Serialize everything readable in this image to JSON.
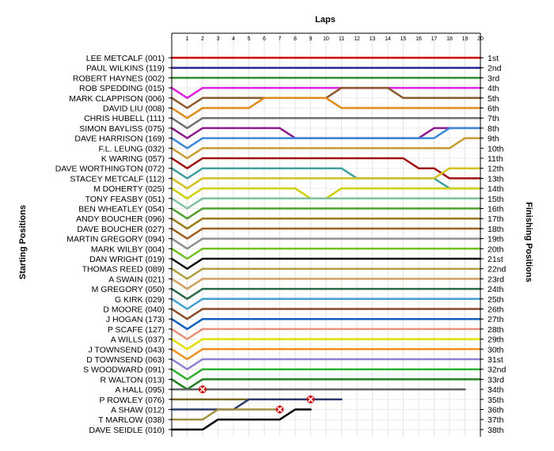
{
  "chart_data": {
    "type": "line",
    "title": "Laps",
    "ylabel_left": "Starting Positions",
    "ylabel_right": "Finishing Positions",
    "x_ticks": [
      "1",
      "2",
      "3",
      "4",
      "5",
      "6",
      "7",
      "8",
      "9",
      "10",
      "11",
      "12",
      "13",
      "14",
      "15",
      "16",
      "17",
      "18",
      "19",
      "20"
    ],
    "xlim": [
      0,
      20
    ],
    "ylim": [
      1,
      38
    ],
    "starting_positions": [
      "LEE METCALF (001)",
      "PAUL WILKINS (119)",
      "ROBERT HAYNES (002)",
      "ROB SPEDDING (015)",
      "MARK CLAPPISON (006)",
      "DAVID LIU (008)",
      "CHRIS HUBELL (111)",
      "SIMON BAYLISS (075)",
      "DAVE HARRISON (169)",
      "F.L. LEUNG (032)",
      "K WARING (057)",
      "DAVE WORTHINGTON (072)",
      "STACEY METCALF (112)",
      "M DOHERTY (025)",
      "TONY FEASBY (051)",
      "BEN WHEATLEY (054)",
      "ANDY BOUCHER (096)",
      "DAVE BOUCHER (027)",
      "MARTIN GREGORY (094)",
      "MARK WILBY (004)",
      "DAN WRIGHT (019)",
      "THOMAS REED (089)",
      "A SWAIN (021)",
      "M GREGORY (050)",
      "G KIRK (029)",
      "D MOORE (040)",
      "J HOGAN (173)",
      "P SCAFE (127)",
      "A WILLS (037)",
      "J TOWNSEND (043)",
      "D TOWNSEND (063)",
      "S WOODWARD (091)",
      "R WALTON (013)",
      "A HALL (095)",
      "P ROWLEY (076)",
      "A SHAW (012)",
      "T MARLOW (038)",
      "DAVE SEIDLE (010)"
    ],
    "finishing_positions": [
      "1st",
      "2nd",
      "3rd",
      "4th",
      "5th",
      "6th",
      "7th",
      "8th",
      "9th",
      "10th",
      "11th",
      "12th",
      "13th",
      "14th",
      "15th",
      "16th",
      "17th",
      "18th",
      "19th",
      "20th",
      "21st",
      "22nd",
      "23rd",
      "24th",
      "25th",
      "26th",
      "27th",
      "28th",
      "29th",
      "30th",
      "31st",
      "32nd",
      "33rd",
      "34th",
      "35th",
      "36th",
      "37th",
      "38th"
    ],
    "series": [
      {
        "color": "#cc0000",
        "positions": [
          1,
          1,
          1,
          1,
          1,
          1,
          1,
          1,
          1,
          1,
          1,
          1,
          1,
          1,
          1,
          1,
          1,
          1,
          1,
          1,
          1
        ]
      },
      {
        "color": "#2a2a9a",
        "positions": [
          2,
          2,
          2,
          2,
          2,
          2,
          2,
          2,
          2,
          2,
          2,
          2,
          2,
          2,
          2,
          2,
          2,
          2,
          2,
          2,
          2
        ]
      },
      {
        "color": "#2e8b2e",
        "positions": [
          3,
          3,
          3,
          3,
          3,
          3,
          3,
          3,
          3,
          3,
          3,
          3,
          3,
          3,
          3,
          3,
          3,
          3,
          3,
          3,
          3
        ]
      },
      {
        "color": "#e020e0",
        "positions": [
          4,
          5,
          4,
          4,
          4,
          4,
          4,
          4,
          4,
          4,
          4,
          4,
          4,
          4,
          4,
          4,
          4,
          4,
          4,
          4,
          4
        ]
      },
      {
        "color": "#8b5a2b",
        "positions": [
          5,
          6,
          5,
          5,
          5,
          5,
          5,
          5,
          5,
          5,
          5,
          4,
          4,
          4,
          4,
          5,
          5,
          5,
          5,
          5,
          5
        ]
      },
      {
        "color": "#e08a1a",
        "positions": [
          6,
          7,
          6,
          6,
          6,
          6,
          5,
          5,
          5,
          5,
          5,
          6,
          6,
          6,
          6,
          6,
          6,
          6,
          6,
          6,
          6
        ]
      },
      {
        "color": "#707070",
        "positions": [
          7,
          8,
          7,
          7,
          7,
          7,
          7,
          7,
          7,
          7,
          7,
          7,
          7,
          7,
          7,
          7,
          7,
          7,
          7,
          7,
          7
        ]
      },
      {
        "color": "#8b1a8b",
        "positions": [
          8,
          9,
          8,
          8,
          8,
          8,
          8,
          8,
          9,
          9,
          9,
          9,
          9,
          9,
          9,
          9,
          9,
          8,
          8,
          8,
          8
        ]
      },
      {
        "color": "#3a8ad8",
        "positions": [
          9,
          10,
          9,
          9,
          9,
          9,
          9,
          9,
          9,
          9,
          9,
          9,
          9,
          9,
          9,
          9,
          9,
          9,
          8,
          8,
          8
        ]
      },
      {
        "color": "#c89a30",
        "positions": [
          10,
          11,
          10,
          10,
          10,
          10,
          10,
          10,
          10,
          10,
          10,
          10,
          10,
          10,
          10,
          10,
          10,
          10,
          10,
          9,
          9
        ]
      },
      {
        "color": "#a01010",
        "positions": [
          11,
          12,
          11,
          11,
          11,
          11,
          11,
          11,
          11,
          11,
          11,
          11,
          11,
          11,
          11,
          11,
          12,
          12,
          13,
          13,
          13
        ]
      },
      {
        "color": "#40a0a0",
        "positions": [
          12,
          13,
          12,
          12,
          12,
          12,
          12,
          12,
          12,
          12,
          12,
          12,
          13,
          13,
          13,
          13,
          13,
          13,
          14,
          14,
          14
        ]
      },
      {
        "color": "#d0c020",
        "positions": [
          13,
          14,
          13,
          13,
          13,
          13,
          13,
          13,
          13,
          13,
          13,
          13,
          13,
          13,
          13,
          13,
          13,
          13,
          12,
          12,
          12
        ]
      },
      {
        "color": "#d0d000",
        "positions": [
          14,
          15,
          14,
          14,
          14,
          14,
          14,
          14,
          14,
          15,
          15,
          14,
          14,
          14,
          14,
          14,
          14,
          14,
          14,
          14,
          14
        ]
      },
      {
        "color": "#80c0a0",
        "positions": [
          15,
          16,
          15,
          15,
          15,
          15,
          15,
          15,
          15,
          15,
          15,
          15,
          15,
          15,
          15,
          15,
          15,
          15,
          15,
          15,
          15
        ]
      },
      {
        "color": "#50a030",
        "positions": [
          16,
          17,
          16,
          16,
          16,
          16,
          16,
          16,
          16,
          16,
          16,
          16,
          16,
          16,
          16,
          16,
          16,
          16,
          16,
          16,
          16
        ]
      },
      {
        "color": "#9a7a10",
        "positions": [
          17,
          18,
          17,
          17,
          17,
          17,
          17,
          17,
          17,
          17,
          17,
          17,
          17,
          17,
          17,
          17,
          17,
          17,
          17,
          17,
          17
        ]
      },
      {
        "color": "#a06020",
        "positions": [
          18,
          19,
          18,
          18,
          18,
          18,
          18,
          18,
          18,
          18,
          18,
          18,
          18,
          18,
          18,
          18,
          18,
          18,
          18,
          18,
          18
        ]
      },
      {
        "color": "#909090",
        "positions": [
          19,
          20,
          19,
          19,
          19,
          19,
          19,
          19,
          19,
          19,
          19,
          19,
          19,
          19,
          19,
          19,
          19,
          19,
          19,
          19,
          19
        ]
      },
      {
        "color": "#70c020",
        "positions": [
          20,
          21,
          20,
          20,
          20,
          20,
          20,
          20,
          20,
          20,
          20,
          20,
          20,
          20,
          20,
          20,
          20,
          20,
          20,
          20,
          20
        ]
      },
      {
        "color": "#111111",
        "positions": [
          21,
          22,
          21,
          21,
          21,
          21,
          21,
          21,
          21,
          21,
          21,
          21,
          21,
          21,
          21,
          21,
          21,
          21,
          21,
          21,
          21
        ]
      },
      {
        "color": "#b0a040",
        "positions": [
          22,
          23,
          22,
          22,
          22,
          22,
          22,
          22,
          22,
          22,
          22,
          22,
          22,
          22,
          22,
          22,
          22,
          22,
          22,
          22,
          22
        ]
      },
      {
        "color": "#d0a060",
        "positions": [
          23,
          24,
          23,
          23,
          23,
          23,
          23,
          23,
          23,
          23,
          23,
          23,
          23,
          23,
          23,
          23,
          23,
          23,
          23,
          23,
          23
        ]
      },
      {
        "color": "#2a6a4a",
        "positions": [
          24,
          25,
          24,
          24,
          24,
          24,
          24,
          24,
          24,
          24,
          24,
          24,
          24,
          24,
          24,
          24,
          24,
          24,
          24,
          24,
          24
        ]
      },
      {
        "color": "#40a0d0",
        "positions": [
          25,
          26,
          25,
          25,
          25,
          25,
          25,
          25,
          25,
          25,
          25,
          25,
          25,
          25,
          25,
          25,
          25,
          25,
          25,
          25,
          25
        ]
      },
      {
        "color": "#8a4a2a",
        "positions": [
          26,
          27,
          26,
          26,
          26,
          26,
          26,
          26,
          26,
          26,
          26,
          26,
          26,
          26,
          26,
          26,
          26,
          26,
          26,
          26,
          26
        ]
      },
      {
        "color": "#1060c0",
        "positions": [
          27,
          28,
          27,
          27,
          27,
          27,
          27,
          27,
          27,
          27,
          27,
          27,
          27,
          27,
          27,
          27,
          27,
          27,
          27,
          27,
          27
        ]
      },
      {
        "color": "#e8907a",
        "positions": [
          28,
          29,
          28,
          28,
          28,
          28,
          28,
          28,
          28,
          28,
          28,
          28,
          28,
          28,
          28,
          28,
          28,
          28,
          28,
          28,
          28
        ]
      },
      {
        "color": "#e0e000",
        "positions": [
          29,
          30,
          29,
          29,
          29,
          29,
          29,
          29,
          29,
          29,
          29,
          29,
          29,
          29,
          29,
          29,
          29,
          29,
          29,
          29,
          29
        ]
      },
      {
        "color": "#f09020",
        "positions": [
          30,
          31,
          30,
          30,
          30,
          30,
          30,
          30,
          30,
          30,
          30,
          30,
          30,
          30,
          30,
          30,
          30,
          30,
          30,
          30,
          30
        ]
      },
      {
        "color": "#9080d0",
        "positions": [
          31,
          32,
          31,
          31,
          31,
          31,
          31,
          31,
          31,
          31,
          31,
          31,
          31,
          31,
          31,
          31,
          31,
          31,
          31,
          31,
          31
        ]
      },
      {
        "color": "#30b030",
        "positions": [
          32,
          33,
          32,
          32,
          32,
          32,
          32,
          32,
          32,
          32,
          32,
          32,
          32,
          32,
          32,
          32,
          32,
          32,
          32,
          32,
          32
        ]
      },
      {
        "color": "#208020",
        "positions": [
          33,
          34,
          33,
          33,
          33,
          33,
          33,
          33,
          33,
          33,
          33,
          33,
          33,
          33,
          33,
          33,
          33,
          33,
          33,
          33,
          33
        ]
      },
      {
        "color": "#606060",
        "positions": [
          34,
          34,
          34,
          34,
          34,
          34,
          34,
          34,
          34,
          34,
          34,
          34,
          34,
          34,
          34,
          34,
          34,
          34,
          34,
          34,
          null
        ]
      },
      {
        "color": "#7a6a2a",
        "positions": [
          35,
          35,
          35,
          35,
          35,
          35,
          35,
          35,
          35,
          35,
          null,
          null,
          null,
          null,
          null,
          null,
          null,
          null,
          null,
          null,
          null
        ]
      },
      {
        "color": "#2a3a6a",
        "positions": [
          36,
          36,
          36,
          36,
          36,
          35,
          35,
          35,
          35,
          35,
          35,
          35,
          null,
          null,
          null,
          null,
          null,
          null,
          null,
          null,
          null
        ]
      },
      {
        "color": "#a09040",
        "positions": [
          37,
          37,
          37,
          36,
          36,
          36,
          36,
          36,
          null,
          null,
          null,
          null,
          null,
          null,
          null,
          null,
          null,
          null,
          null,
          null,
          null
        ]
      },
      {
        "color": "#000000",
        "positions": [
          38,
          38,
          38,
          37,
          37,
          37,
          37,
          37,
          36,
          36,
          null,
          null,
          null,
          null,
          null,
          null,
          null,
          null,
          null,
          null,
          null
        ]
      }
    ],
    "retirements": [
      {
        "lap": 2,
        "position": 34
      },
      {
        "lap": 7,
        "position": 36
      },
      {
        "lap": 9,
        "position": 35
      }
    ],
    "grid": true
  }
}
